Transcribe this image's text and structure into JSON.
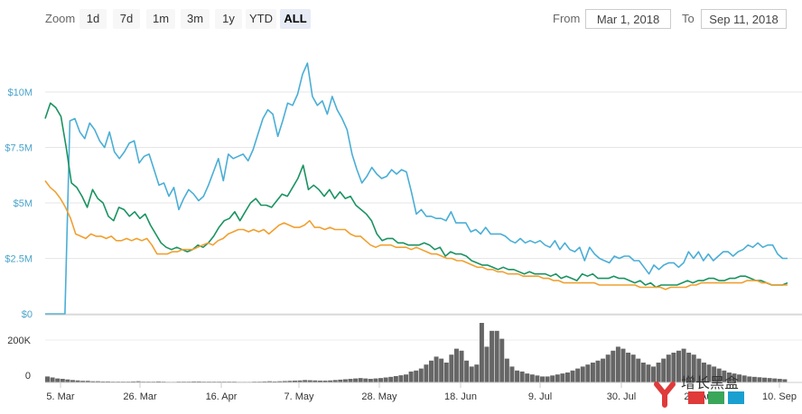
{
  "toolbar": {
    "zoom_label": "Zoom",
    "zoom_buttons": [
      "1d",
      "7d",
      "1m",
      "3m",
      "1y",
      "YTD",
      "ALL"
    ],
    "active_zoom": "ALL",
    "from_label": "From",
    "from_value": "Mar 1, 2018",
    "to_label": "To",
    "to_value": "Sep 11, 2018"
  },
  "watermark": {
    "text": "增长黑盒"
  },
  "chart_data": {
    "type": "line",
    "x_tick_labels": [
      "5. Mar",
      "26. Mar",
      "16. Apr",
      "7. May",
      "28. May",
      "18. Jun",
      "9. Jul",
      "30. Jul",
      "20. Aug",
      "10. Sep"
    ],
    "y_tick_labels": [
      "$0",
      "$2.5M",
      "$5M",
      "$7.5M",
      "$10M"
    ],
    "ylim": [
      0,
      10000000
    ],
    "volume_tick_labels": [
      "0",
      "200K"
    ],
    "colors": {
      "market_cap": "#4aaed6",
      "price_green": "#1a9361",
      "price_orange": "#f0a030",
      "volume": "#666666"
    },
    "series": [
      {
        "key": "market_cap",
        "values": [
          0,
          0,
          0,
          0,
          0,
          8.7,
          8.8,
          8.2,
          7.9,
          8.6,
          8.3,
          7.8,
          7.5,
          8.2,
          7.3,
          7.0,
          7.3,
          7.7,
          7.8,
          6.8,
          7.1,
          7.2,
          6.5,
          5.8,
          5.9,
          5.3,
          5.7,
          4.7,
          5.2,
          5.6,
          5.4,
          5.1,
          5.3,
          5.8,
          6.4,
          7.0,
          6.0,
          7.2,
          7.0,
          7.1,
          7.2,
          6.9,
          7.4,
          8.1,
          8.8,
          9.2,
          9.0,
          8.0,
          8.7,
          9.5,
          9.4,
          9.9,
          10.8,
          11.3,
          9.8,
          9.4,
          9.6,
          9.0,
          9.8,
          9.2,
          8.8,
          8.3,
          7.2,
          6.5,
          5.9,
          6.2,
          6.6,
          6.3,
          6.1,
          6.2,
          6.5,
          6.3,
          6.5,
          6.4,
          5.5,
          4.5,
          4.7,
          4.4,
          4.4,
          4.3,
          4.3,
          4.2,
          4.6,
          4.1,
          4.1,
          4.1,
          3.7,
          3.8,
          3.6,
          3.9,
          3.6,
          3.6,
          3.6,
          3.5,
          3.3,
          3.2,
          3.4,
          3.2,
          3.3,
          3.2,
          3.3,
          3.1,
          3.0,
          3.3,
          2.9,
          3.2,
          2.9,
          2.8,
          3.0,
          2.4,
          3.0,
          2.7,
          2.5,
          2.4,
          2.3,
          2.6,
          2.5,
          2.6,
          2.6,
          2.4,
          2.4,
          2.1,
          1.8,
          2.2,
          2.0,
          2.2,
          2.3,
          2.3,
          2.1,
          2.3,
          2.8,
          2.5,
          2.8,
          2.4,
          2.7,
          2.4,
          2.6,
          2.8,
          2.8,
          2.6,
          2.8,
          2.9,
          3.1,
          3.0,
          3.2,
          3.0,
          3.1,
          3.1,
          2.7,
          2.5,
          2.5
        ]
      },
      {
        "key": "price_green",
        "values": [
          8.8,
          9.5,
          9.3,
          8.9,
          7.5,
          5.9,
          5.7,
          5.3,
          4.8,
          5.6,
          5.2,
          5.0,
          4.4,
          4.2,
          4.8,
          4.7,
          4.4,
          4.6,
          4.3,
          4.5,
          4.0,
          3.6,
          3.2,
          3.0,
          2.9,
          3.0,
          2.9,
          2.8,
          2.9,
          3.1,
          3.0,
          3.2,
          3.5,
          3.9,
          4.2,
          4.3,
          4.6,
          4.2,
          4.6,
          5.0,
          5.2,
          4.9,
          4.9,
          4.8,
          5.1,
          5.4,
          5.3,
          5.7,
          6.1,
          6.7,
          5.6,
          5.8,
          5.6,
          5.3,
          5.6,
          5.2,
          5.5,
          5.2,
          5.3,
          4.9,
          4.7,
          4.5,
          4.2,
          3.6,
          3.3,
          3.4,
          3.4,
          3.2,
          3.2,
          3.1,
          3.1,
          3.1,
          3.2,
          3.1,
          2.9,
          3.0,
          2.6,
          2.8,
          2.7,
          2.7,
          2.6,
          2.4,
          2.3,
          2.2,
          2.2,
          2.1,
          2.0,
          2.1,
          2.0,
          2.0,
          1.9,
          1.8,
          1.9,
          1.8,
          1.8,
          1.8,
          1.7,
          1.8,
          1.6,
          1.7,
          1.6,
          1.5,
          1.8,
          1.7,
          1.8,
          1.6,
          1.6,
          1.6,
          1.7,
          1.6,
          1.6,
          1.5,
          1.4,
          1.5,
          1.3,
          1.4,
          1.2,
          1.3,
          1.3,
          1.3,
          1.3,
          1.4,
          1.5,
          1.4,
          1.5,
          1.5,
          1.6,
          1.6,
          1.5,
          1.5,
          1.6,
          1.6,
          1.7,
          1.7,
          1.6,
          1.5,
          1.5,
          1.4,
          1.3,
          1.3,
          1.3,
          1.4
        ]
      },
      {
        "key": "price_orange",
        "values": [
          6.0,
          5.7,
          5.5,
          5.2,
          4.8,
          4.3,
          3.6,
          3.5,
          3.4,
          3.6,
          3.5,
          3.5,
          3.4,
          3.5,
          3.3,
          3.3,
          3.4,
          3.3,
          3.4,
          3.3,
          3.4,
          3.1,
          2.7,
          2.7,
          2.7,
          2.8,
          2.8,
          2.9,
          2.9,
          2.9,
          3.0,
          3.1,
          3.2,
          3.1,
          3.3,
          3.4,
          3.6,
          3.7,
          3.8,
          3.8,
          3.7,
          3.8,
          3.7,
          3.8,
          3.6,
          3.8,
          4.0,
          4.1,
          4.0,
          3.9,
          3.9,
          4.0,
          4.2,
          3.9,
          3.9,
          3.8,
          3.9,
          3.8,
          3.8,
          3.8,
          3.6,
          3.5,
          3.5,
          3.3,
          3.1,
          3.0,
          3.1,
          3.1,
          3.1,
          3.0,
          3.0,
          3.0,
          2.9,
          3.0,
          2.9,
          2.8,
          2.7,
          2.7,
          2.6,
          2.5,
          2.5,
          2.4,
          2.4,
          2.3,
          2.2,
          2.1,
          2.1,
          2.0,
          2.0,
          1.9,
          1.9,
          1.8,
          1.8,
          1.8,
          1.7,
          1.7,
          1.7,
          1.7,
          1.6,
          1.6,
          1.5,
          1.5,
          1.4,
          1.4,
          1.4,
          1.4,
          1.4,
          1.4,
          1.4,
          1.3,
          1.3,
          1.3,
          1.3,
          1.3,
          1.3,
          1.3,
          1.3,
          1.2,
          1.2,
          1.2,
          1.2,
          1.2,
          1.1,
          1.2,
          1.2,
          1.2,
          1.2,
          1.3,
          1.3,
          1.4,
          1.4,
          1.4,
          1.4,
          1.4,
          1.4,
          1.4,
          1.4,
          1.4,
          1.5,
          1.5,
          1.5,
          1.4,
          1.4,
          1.3,
          1.3,
          1.3,
          1.3
        ]
      }
    ],
    "volume": {
      "values": [
        30,
        25,
        20,
        18,
        15,
        12,
        10,
        8,
        8,
        6,
        6,
        5,
        5,
        4,
        4,
        4,
        4,
        5,
        6,
        4,
        4,
        4,
        5,
        4,
        3,
        3,
        4,
        4,
        4,
        5,
        5,
        4,
        4,
        4,
        4,
        4,
        4,
        4,
        3,
        3,
        3,
        4,
        4,
        5,
        6,
        5,
        6,
        7,
        8,
        9,
        10,
        12,
        11,
        10,
        9,
        9,
        10,
        12,
        14,
        16,
        18,
        20,
        22,
        20,
        18,
        20,
        22,
        25,
        28,
        32,
        36,
        40,
        55,
        60,
        70,
        90,
        110,
        130,
        120,
        100,
        140,
        170,
        160,
        110,
        80,
        90,
        300,
        180,
        260,
        260,
        220,
        120,
        80,
        60,
        55,
        45,
        40,
        35,
        30,
        30,
        35,
        40,
        45,
        50,
        60,
        70,
        80,
        90,
        100,
        110,
        120,
        140,
        160,
        180,
        170,
        150,
        140,
        120,
        100,
        90,
        80,
        100,
        120,
        140,
        150,
        160,
        170,
        150,
        140,
        120,
        100,
        90,
        80,
        70,
        60,
        50,
        45,
        40,
        35,
        30,
        28,
        26,
        24,
        22,
        20,
        18,
        16
      ]
    }
  }
}
